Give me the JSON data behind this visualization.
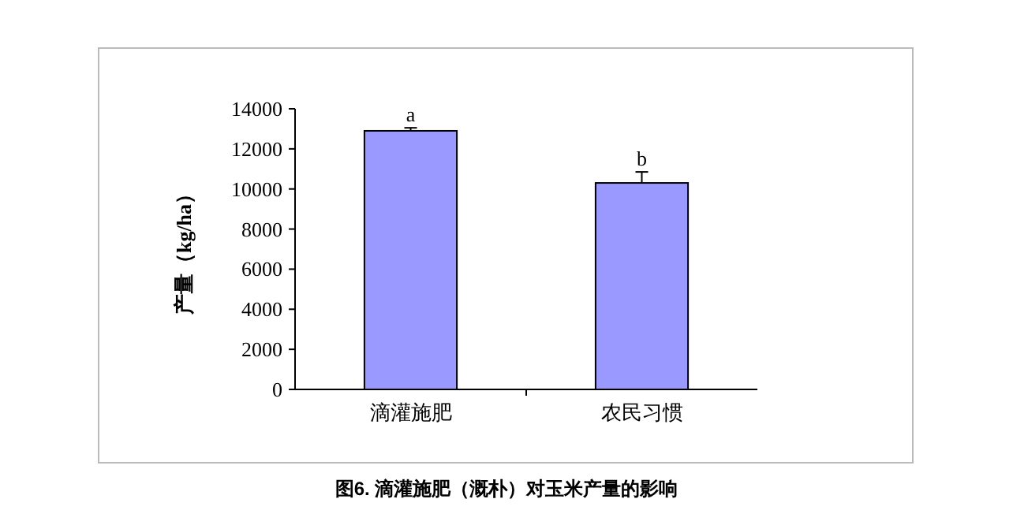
{
  "chart_data": {
    "type": "bar",
    "ylabel": "产量（kg/ha）",
    "categories": [
      "滴灌施肥",
      "农民习惯"
    ],
    "values": [
      12900,
      10300
    ],
    "errors": [
      150,
      550
    ],
    "color": "#9999ff",
    "ylim": [
      0,
      14000
    ],
    "yticks": [
      0,
      2000,
      4000,
      6000,
      8000,
      10000,
      12000,
      14000
    ],
    "grid": false,
    "annotations": [
      {
        "text": "a",
        "x": "滴灌施肥",
        "y": 13050
      },
      {
        "text": "b",
        "x": "农民习惯",
        "y": 10850
      },
      "图6. 滴灌施肥（溉朴）对玉米产量的影响"
    ]
  }
}
